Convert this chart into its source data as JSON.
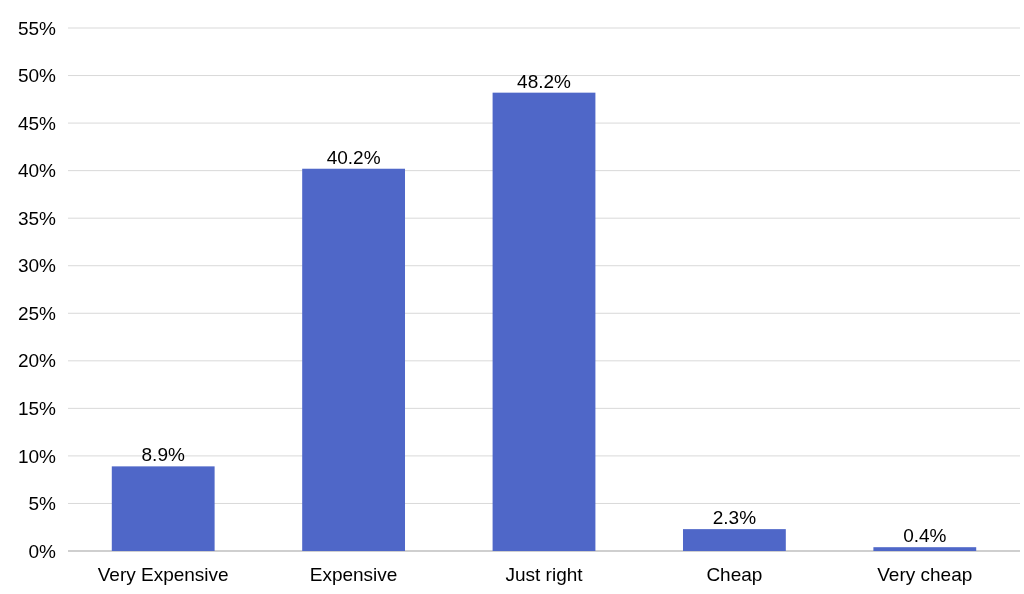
{
  "chart_data": {
    "type": "bar",
    "categories": [
      "Very Expensive",
      "Expensive",
      "Just right",
      "Cheap",
      "Very cheap"
    ],
    "values": [
      8.9,
      40.2,
      48.2,
      2.3,
      0.4
    ],
    "color": "#4f67c8",
    "value_labels": [
      "8.9%",
      "40.2%",
      "48.2%",
      "2.3%",
      "0.4%"
    ],
    "ylim": [
      0,
      55
    ],
    "yticks": [
      {
        "value": 0,
        "label": "0%"
      },
      {
        "value": 5,
        "label": "5%"
      },
      {
        "value": 10,
        "label": "10%"
      },
      {
        "value": 15,
        "label": "15%"
      },
      {
        "value": 20,
        "label": "20%"
      },
      {
        "value": 25,
        "label": "25%"
      },
      {
        "value": 30,
        "label": "30%"
      },
      {
        "value": 35,
        "label": "35%"
      },
      {
        "value": 40,
        "label": "40%"
      },
      {
        "value": 45,
        "label": "45%"
      },
      {
        "value": 50,
        "label": "50%"
      },
      {
        "value": 55,
        "label": "55%"
      }
    ],
    "grid": "y"
  }
}
